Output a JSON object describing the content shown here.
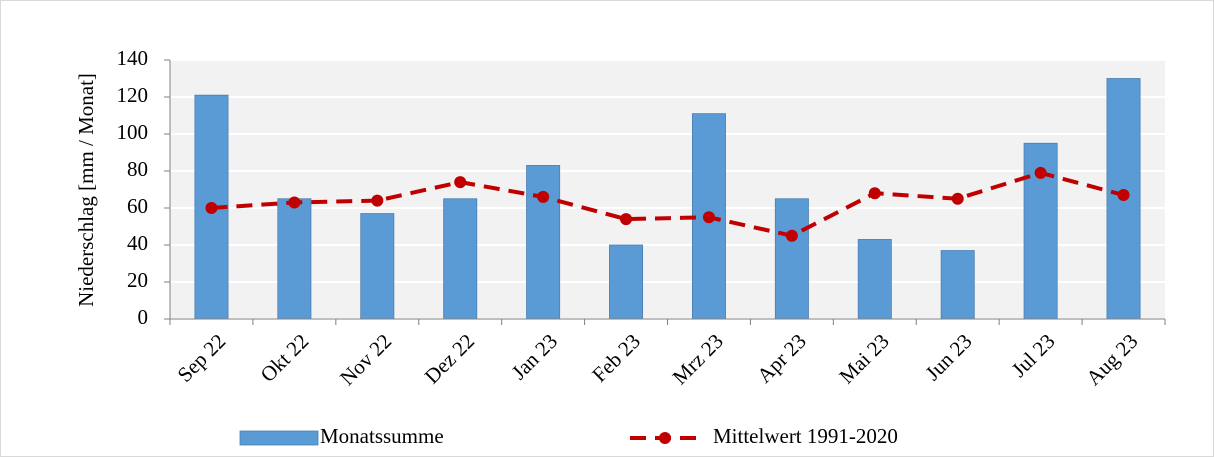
{
  "chart_data": {
    "type": "combo",
    "y_label": "Niederschlag [mm / Monat]",
    "categories": [
      "Sep 22",
      "Okt 22",
      "Nov 22",
      "Dez 22",
      "Jan 23",
      "Feb 23",
      "Mrz 23",
      "Apr 23",
      "Mai 23",
      "Jun 23",
      "Jul 23",
      "Aug 23"
    ],
    "series": [
      {
        "name": "Monatssumme",
        "type": "bar",
        "color": "#5b9bd5",
        "values": [
          121,
          65,
          57,
          65,
          83,
          40,
          111,
          65,
          43,
          37,
          95,
          130
        ]
      },
      {
        "name": "Mittelwert 1991-2020",
        "type": "line",
        "color": "#c00000",
        "values": [
          60,
          63,
          64,
          74,
          66,
          54,
          55,
          45,
          68,
          65,
          79,
          67
        ]
      }
    ],
    "ylim": [
      0,
      140
    ],
    "yticks": [
      0,
      20,
      40,
      60,
      80,
      100,
      120,
      140
    ],
    "grid": true
  }
}
